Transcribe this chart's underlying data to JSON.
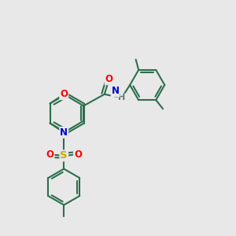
{
  "bg_color": "#e8e8e8",
  "bond_color": "#2d6e4e",
  "bond_width": 1.5,
  "atom_colors": {
    "O": "#ff0000",
    "N": "#0000cc",
    "S": "#ccaa00",
    "H": "#607878",
    "C": "#2d6e4e"
  },
  "font_size_atom": 8.5,
  "fig_size": [
    3.0,
    3.0
  ],
  "dpi": 100
}
